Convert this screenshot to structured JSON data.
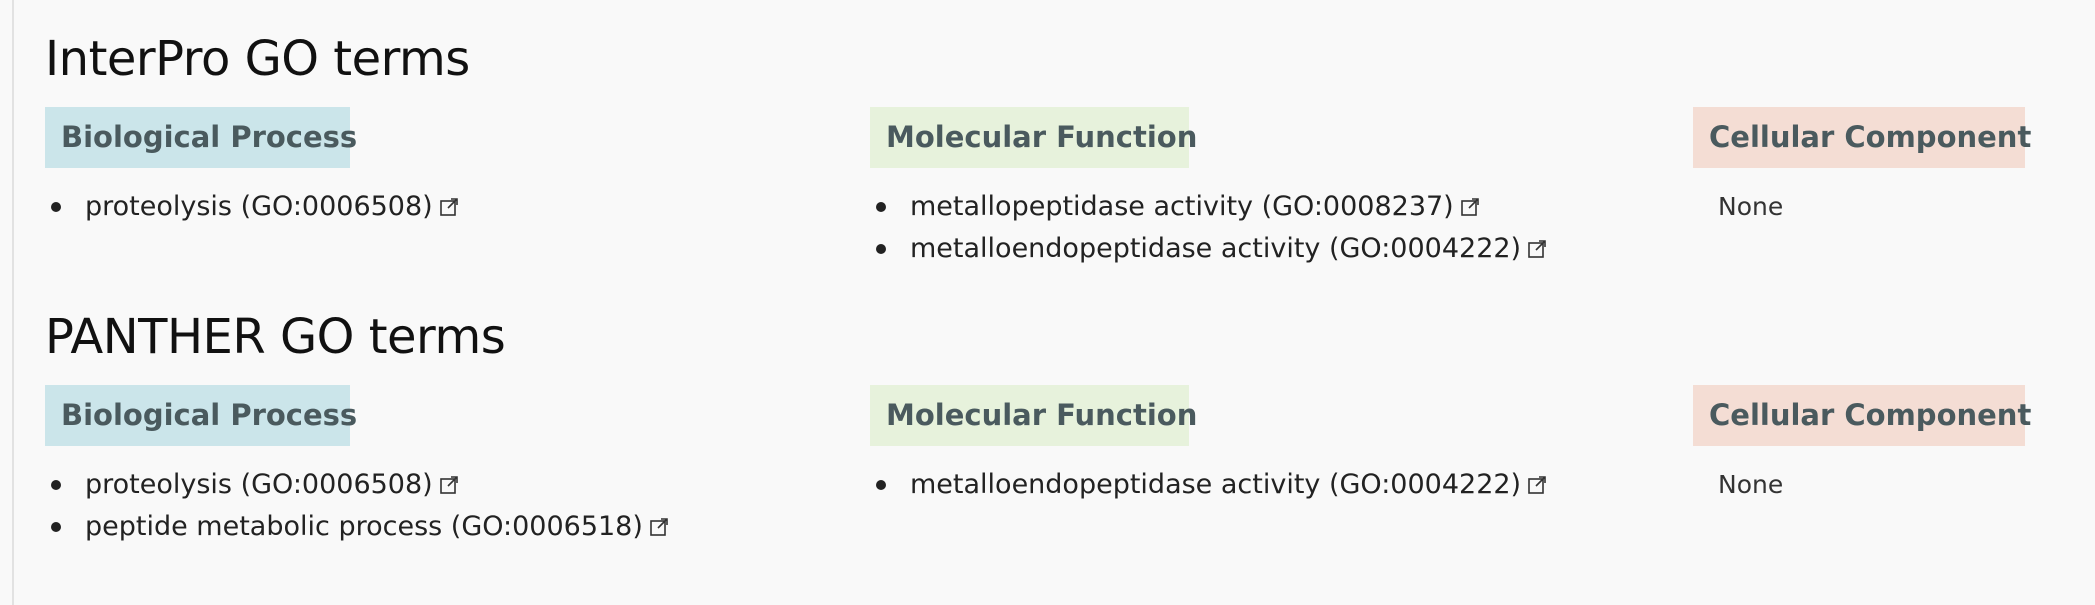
{
  "interpro": {
    "title": "InterPro GO terms",
    "biological_process": {
      "label": "Biological Process",
      "terms": [
        "proteolysis (GO:0006508)"
      ]
    },
    "molecular_function": {
      "label": "Molecular Function",
      "terms": [
        "metallopeptidase activity (GO:0008237)",
        "metalloendopeptidase activity (GO:0004222)"
      ]
    },
    "cellular_component": {
      "label": "Cellular Component",
      "none_text": "None"
    }
  },
  "panther": {
    "title": "PANTHER GO terms",
    "biological_process": {
      "label": "Biological Process",
      "terms": [
        "proteolysis (GO:0006508)",
        "peptide metabolic process (GO:0006518)"
      ]
    },
    "molecular_function": {
      "label": "Molecular Function",
      "terms": [
        "metalloendopeptidase activity (GO:0004222)"
      ]
    },
    "cellular_component": {
      "label": "Cellular Component",
      "none_text": "None"
    }
  },
  "colors": {
    "biological_process_bg": "#cbe5ea",
    "molecular_function_bg": "#e7f2dc",
    "cellular_component_bg": "#f4ddd4",
    "badge_text": "#4a5a5e"
  },
  "icons": {
    "external_link": "external-link-icon"
  }
}
